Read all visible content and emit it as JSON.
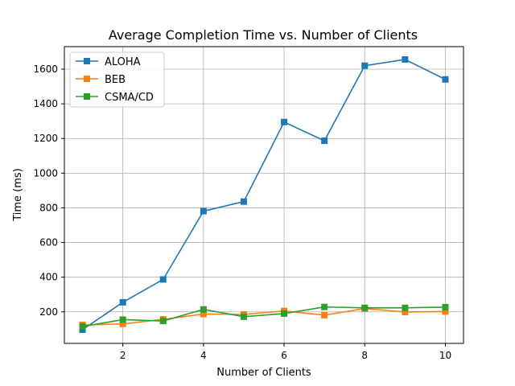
{
  "chart_data": {
    "type": "line",
    "title": "Average Completion Time vs. Number of Clients",
    "xlabel": "Number of Clients",
    "ylabel": "Time (ms)",
    "x": [
      1,
      2,
      3,
      4,
      5,
      6,
      7,
      8,
      9,
      10
    ],
    "xlim": [
      0.55,
      10.45
    ],
    "ylim": [
      18,
      1730
    ],
    "xticks": [
      2,
      4,
      6,
      8,
      10
    ],
    "yticks": [
      200,
      400,
      600,
      800,
      1000,
      1200,
      1400,
      1600
    ],
    "grid": true,
    "legend_position": "top-left",
    "series": [
      {
        "name": "ALOHA",
        "color": "#1f77b4",
        "marker": "square",
        "values": [
          97,
          255,
          387,
          781,
          836,
          1295,
          1187,
          1620,
          1656,
          1541
        ]
      },
      {
        "name": "BEB",
        "color": "#ff7f0e",
        "marker": "square",
        "values": [
          125,
          130,
          157,
          187,
          185,
          205,
          181,
          219,
          199,
          202
        ]
      },
      {
        "name": "CSMA/CD",
        "color": "#2ca02c",
        "marker": "square",
        "values": [
          115,
          155,
          147,
          214,
          172,
          190,
          228,
          223,
          223,
          227
        ]
      }
    ]
  }
}
